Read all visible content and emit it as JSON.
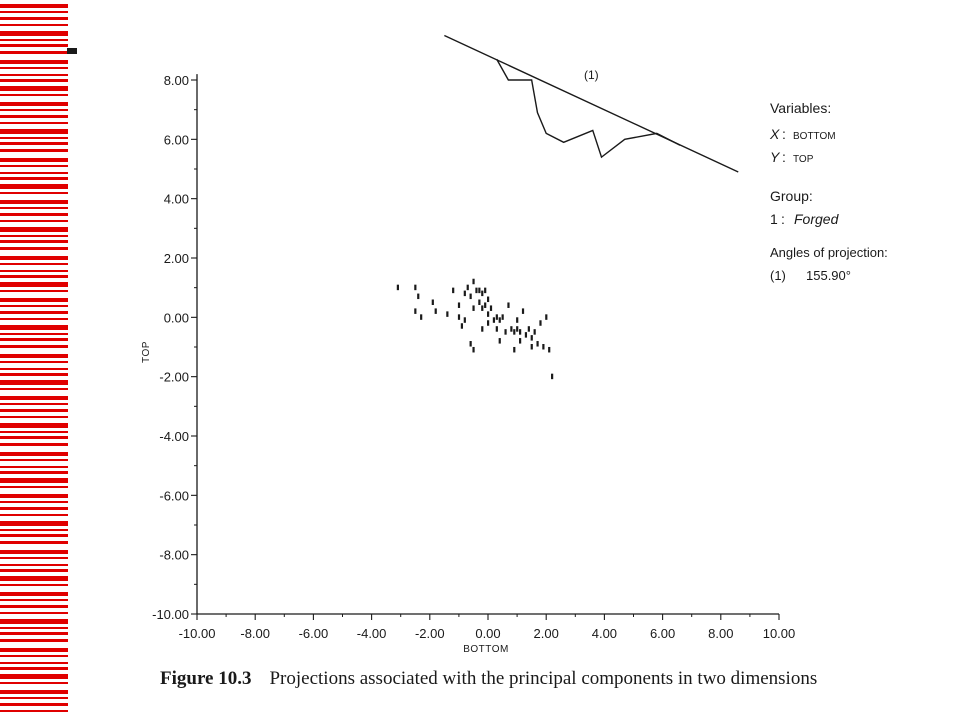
{
  "side_decoration": {
    "stripe_color": "#e00000"
  },
  "chart_data": {
    "type": "scatter",
    "xlabel": "BOTTOM",
    "ylabel": "TOP",
    "xlim": [
      -10,
      10
    ],
    "ylim": [
      -10,
      8.7
    ],
    "x_ticks": [
      "-10.00",
      "-8.00",
      "-6.00",
      "-4.00",
      "-2.00",
      "0.00",
      "2.00",
      "4.00",
      "6.00",
      "8.00",
      "10.00"
    ],
    "y_ticks": [
      "8.00",
      "6.00",
      "4.00",
      "2.00",
      "0.00",
      "-2.00",
      "-4.00",
      "-6.00",
      "-8.00",
      "-10.00"
    ],
    "grid": false,
    "series": [
      {
        "name": "Forged",
        "points": [
          [
            -3.1,
            1.0
          ],
          [
            -2.5,
            1.0
          ],
          [
            -2.4,
            0.7
          ],
          [
            -2.5,
            0.2
          ],
          [
            -2.3,
            0.0
          ],
          [
            -1.9,
            0.5
          ],
          [
            -1.8,
            0.2
          ],
          [
            -1.2,
            0.9
          ],
          [
            -1.0,
            0.4
          ],
          [
            -1.0,
            0.0
          ],
          [
            -0.8,
            0.8
          ],
          [
            -0.7,
            1.0
          ],
          [
            -0.6,
            0.7
          ],
          [
            -0.5,
            1.2
          ],
          [
            -0.5,
            0.3
          ],
          [
            -0.4,
            0.9
          ],
          [
            -0.3,
            0.9
          ],
          [
            -0.3,
            0.5
          ],
          [
            -0.2,
            0.8
          ],
          [
            -0.2,
            0.3
          ],
          [
            -0.1,
            0.9
          ],
          [
            -0.1,
            0.4
          ],
          [
            0.0,
            0.6
          ],
          [
            0.0,
            0.1
          ],
          [
            0.0,
            -0.2
          ],
          [
            0.1,
            0.3
          ],
          [
            0.2,
            -0.1
          ],
          [
            0.3,
            0.0
          ],
          [
            0.3,
            -0.4
          ],
          [
            0.4,
            -0.1
          ],
          [
            0.5,
            0.0
          ],
          [
            0.6,
            -0.5
          ],
          [
            0.7,
            0.4
          ],
          [
            0.8,
            -0.4
          ],
          [
            0.9,
            -0.5
          ],
          [
            1.0,
            -0.4
          ],
          [
            1.0,
            -0.1
          ],
          [
            1.1,
            -0.5
          ],
          [
            1.2,
            0.2
          ],
          [
            1.3,
            -0.6
          ],
          [
            1.4,
            -0.4
          ],
          [
            1.5,
            -0.7
          ],
          [
            1.5,
            -1.0
          ],
          [
            1.6,
            -0.5
          ],
          [
            1.7,
            -0.9
          ],
          [
            1.8,
            -0.2
          ],
          [
            1.9,
            -1.0
          ],
          [
            2.0,
            0.0
          ],
          [
            2.1,
            -1.1
          ],
          [
            -0.6,
            -0.9
          ],
          [
            -0.5,
            -1.1
          ],
          [
            -0.9,
            -0.3
          ],
          [
            0.9,
            -1.1
          ],
          [
            2.2,
            -2.0
          ],
          [
            -1.4,
            0.1
          ],
          [
            -0.8,
            -0.1
          ],
          [
            0.4,
            -0.8
          ],
          [
            -0.2,
            -0.4
          ],
          [
            1.1,
            -0.8
          ]
        ]
      }
    ],
    "projection_curve": {
      "label": "(1)",
      "line_points": [
        [
          -1.5,
          9.5
        ],
        [
          8.6,
          4.9
        ]
      ],
      "polyline_points": [
        [
          0.3,
          8.7
        ],
        [
          0.7,
          8.0
        ],
        [
          1.5,
          8.0
        ],
        [
          1.7,
          6.9
        ],
        [
          2.0,
          6.2
        ],
        [
          2.6,
          5.9
        ],
        [
          3.6,
          6.3
        ],
        [
          3.9,
          5.4
        ],
        [
          4.7,
          6.0
        ],
        [
          5.8,
          6.2
        ],
        [
          6.6,
          5.8
        ]
      ]
    },
    "legend": {
      "variables_title": "Variables:",
      "x_key": "X",
      "x_value": "BOTTOM",
      "y_key": "Y",
      "y_value": "TOP",
      "group_title": "Group:",
      "group_number": "1",
      "group_name": "Forged",
      "angles_title": "Angles of projection:",
      "angle_label": "(1)",
      "angle_value": "155.90°"
    }
  },
  "caption": {
    "figure_number": "Figure 10.3",
    "text": "Projections associated with the principal components in two dimensions"
  }
}
